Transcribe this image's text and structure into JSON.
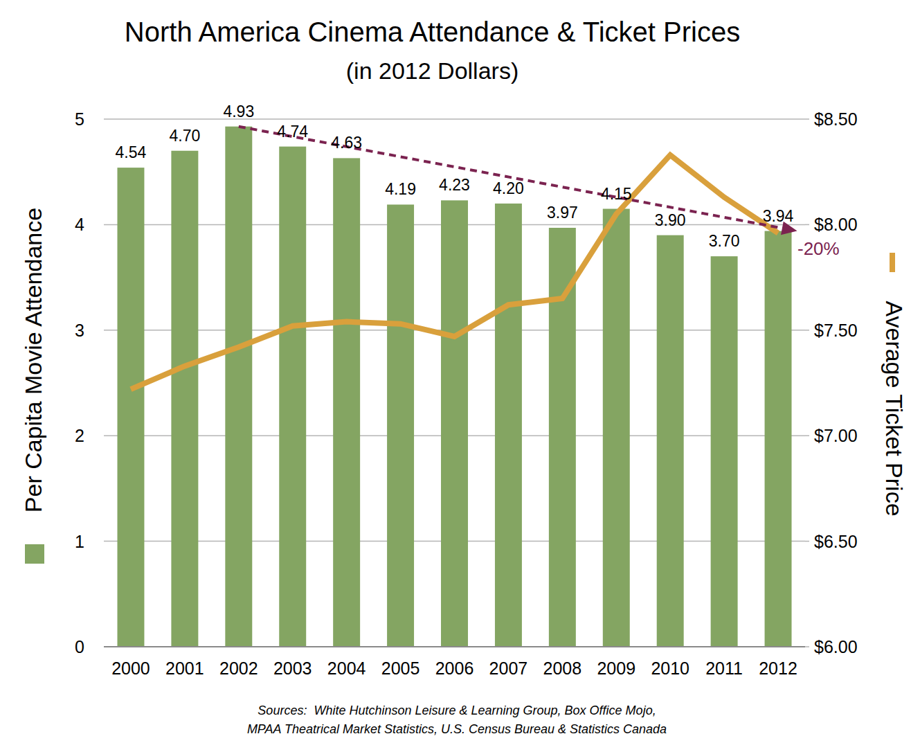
{
  "chart_data": {
    "type": "bar",
    "title": "North America Cinema Attendance & Ticket Prices",
    "subtitle": "(in 2012 Dollars)",
    "categories": [
      "2000",
      "2001",
      "2002",
      "2003",
      "2004",
      "2005",
      "2006",
      "2007",
      "2008",
      "2009",
      "2010",
      "2011",
      "2012"
    ],
    "series": [
      {
        "name": "Per Capita Movie Attendance",
        "type": "bar",
        "color": "#84a562",
        "values": [
          4.54,
          4.7,
          4.93,
          4.74,
          4.63,
          4.19,
          4.23,
          4.2,
          3.97,
          4.15,
          3.9,
          3.7,
          3.94
        ],
        "value_labels": [
          "4.54",
          "4.70",
          "4.93",
          "4.74",
          "4.63",
          "4.19",
          "4.23",
          "4.20",
          "3.97",
          "4.15",
          "3.90",
          "3.70",
          "3.94"
        ]
      },
      {
        "name": "Average Ticket Price",
        "type": "line",
        "color": "#d9a03c",
        "axis": "y2",
        "values": [
          7.22,
          7.33,
          7.42,
          7.52,
          7.54,
          7.53,
          7.47,
          7.62,
          7.65,
          8.05,
          8.33,
          8.13,
          7.96
        ]
      }
    ],
    "ylim": [
      0,
      5
    ],
    "yticks": [
      0,
      1,
      2,
      3,
      4,
      5
    ],
    "y2lim": [
      6,
      8.5
    ],
    "y2ticks": [
      {
        "value": 6,
        "label": "$6.00"
      },
      {
        "value": 6.5,
        "label": "$6.50"
      },
      {
        "value": 7,
        "label": "$7.00"
      },
      {
        "value": 7.5,
        "label": "$7.50"
      },
      {
        "value": 8,
        "label": "$8.00"
      },
      {
        "value": 8.5,
        "label": "$8.50"
      }
    ],
    "grid": true,
    "data_labels": true,
    "annotations": [
      {
        "text": "-20%",
        "x": [
          "2002",
          "2012"
        ],
        "y": [
          4.93,
          3.94
        ],
        "color": "#7b2350",
        "line_style": "dashed"
      }
    ],
    "source": [
      "Sources:  White Hutchinson Leisure & Learning Group, Box Office Mojo,",
      "MPAA Theatrical Market Statistics, U.S. Census Bureau & Statistics Canada"
    ]
  }
}
